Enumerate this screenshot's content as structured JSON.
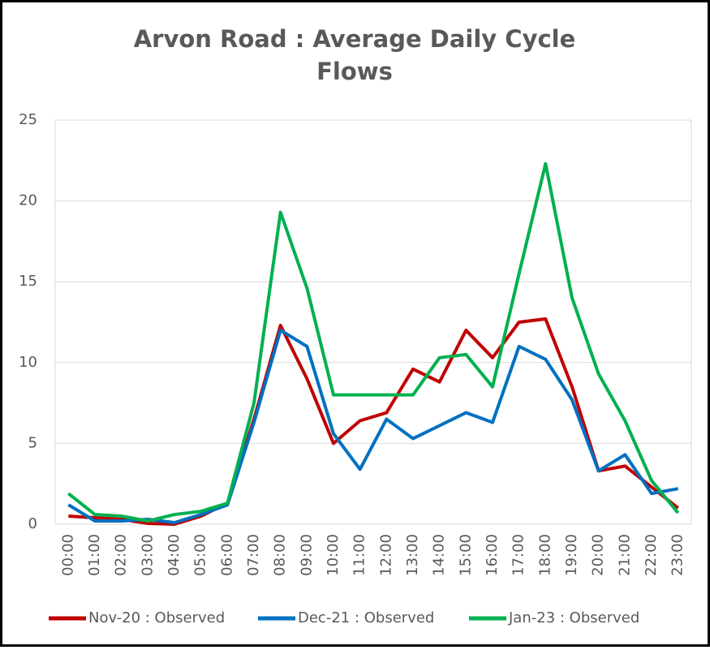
{
  "chart_data": {
    "type": "line",
    "title": "Arvon Road : Average Daily Cycle Flows",
    "categories": [
      "00:00",
      "01:00",
      "02:00",
      "03:00",
      "04:00",
      "05:00",
      "06:00",
      "07:00",
      "08:00",
      "09:00",
      "10:00",
      "11:00",
      "12:00",
      "13:00",
      "14:00",
      "15:00",
      "16:00",
      "17:00",
      "18:00",
      "19:00",
      "20:00",
      "21:00",
      "22:00",
      "23:00"
    ],
    "series": [
      {
        "name": "Nov-20 : Observed",
        "color": "#c00000",
        "values": [
          0.5,
          0.4,
          0.3,
          0.05,
          0.0,
          0.5,
          1.3,
          6.5,
          12.3,
          9.0,
          5.0,
          6.4,
          6.9,
          9.6,
          8.8,
          12.0,
          10.3,
          12.5,
          12.7,
          8.5,
          3.3,
          3.6,
          2.3,
          1.0
        ]
      },
      {
        "name": "Dec-21 : Observed",
        "color": "#0070c0",
        "values": [
          1.2,
          0.2,
          0.2,
          0.3,
          0.1,
          0.6,
          1.2,
          6.3,
          12.0,
          11.0,
          5.6,
          3.4,
          6.5,
          5.3,
          6.1,
          6.9,
          6.3,
          11.0,
          10.2,
          7.7,
          3.3,
          4.3,
          1.9,
          2.2
        ]
      },
      {
        "name": "Jan-23 : Observed",
        "color": "#00b050",
        "values": [
          1.9,
          0.6,
          0.5,
          0.2,
          0.6,
          0.8,
          1.3,
          7.5,
          19.3,
          14.6,
          8.0,
          8.0,
          8.0,
          8.0,
          10.3,
          10.5,
          8.5,
          15.5,
          22.3,
          14.0,
          9.3,
          6.4,
          2.7,
          0.7
        ]
      }
    ],
    "ylim": [
      0,
      25
    ],
    "yticks": [
      0,
      5,
      10,
      15,
      20,
      25
    ],
    "grid": true,
    "legend": "bottom"
  }
}
